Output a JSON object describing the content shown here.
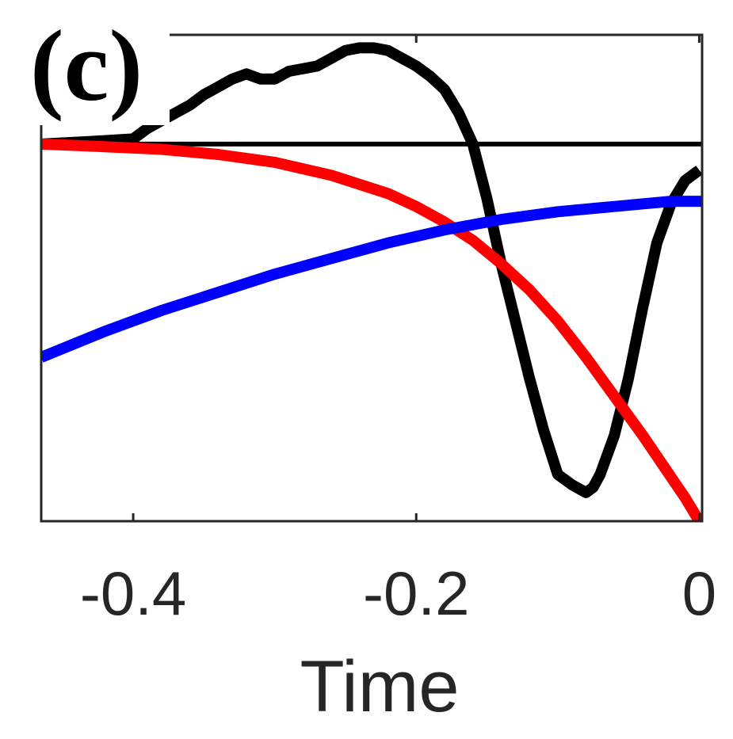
{
  "chart_data": {
    "type": "line",
    "panel_label": "(c)",
    "title": "",
    "xlabel": "Time",
    "ylabel": "",
    "xlim": [
      -0.465,
      0.002
    ],
    "ylim": [
      -1.45,
      0.42
    ],
    "xticks": [
      -0.4,
      -0.2,
      0
    ],
    "xtick_labels": [
      "-0.4",
      "-0.2",
      "0"
    ],
    "yticks": [],
    "grid": false,
    "reference_line": {
      "y": 0,
      "color": "#000000"
    },
    "series": [
      {
        "color": "#000000",
        "x": [
          -0.465,
          -0.43,
          -0.4,
          -0.39,
          -0.38,
          -0.37,
          -0.36,
          -0.35,
          -0.34,
          -0.33,
          -0.32,
          -0.31,
          -0.3,
          -0.29,
          -0.28,
          -0.27,
          -0.26,
          -0.25,
          -0.24,
          -0.23,
          -0.22,
          -0.21,
          -0.2,
          -0.19,
          -0.18,
          -0.17,
          -0.16,
          -0.15,
          -0.14,
          -0.13,
          -0.12,
          -0.11,
          -0.1,
          -0.09,
          -0.08,
          -0.075,
          -0.07,
          -0.06,
          -0.05,
          -0.04,
          -0.03,
          -0.02,
          -0.01,
          0.0
        ],
        "y": [
          0.0,
          0.01,
          0.02,
          0.06,
          0.09,
          0.12,
          0.15,
          0.19,
          0.22,
          0.25,
          0.27,
          0.25,
          0.25,
          0.28,
          0.29,
          0.3,
          0.33,
          0.36,
          0.37,
          0.37,
          0.36,
          0.33,
          0.3,
          0.26,
          0.21,
          0.12,
          0.0,
          -0.21,
          -0.46,
          -0.68,
          -0.9,
          -1.1,
          -1.27,
          -1.31,
          -1.34,
          -1.32,
          -1.27,
          -1.12,
          -0.9,
          -0.63,
          -0.38,
          -0.23,
          -0.14,
          -0.1
        ]
      },
      {
        "color": "#ff0000",
        "x": [
          -0.465,
          -0.42,
          -0.38,
          -0.34,
          -0.3,
          -0.26,
          -0.22,
          -0.2,
          -0.18,
          -0.16,
          -0.14,
          -0.12,
          -0.1,
          -0.08,
          -0.06,
          -0.04,
          -0.02,
          -0.01,
          0.0
        ],
        "y": [
          0.0,
          -0.01,
          -0.02,
          -0.04,
          -0.07,
          -0.12,
          -0.19,
          -0.24,
          -0.3,
          -0.37,
          -0.46,
          -0.56,
          -0.68,
          -0.82,
          -0.97,
          -1.12,
          -1.28,
          -1.36,
          -1.45
        ]
      },
      {
        "color": "#0000ff",
        "x": [
          -0.465,
          -0.42,
          -0.38,
          -0.34,
          -0.3,
          -0.26,
          -0.22,
          -0.18,
          -0.14,
          -0.1,
          -0.06,
          -0.02,
          0.002
        ],
        "y": [
          -0.82,
          -0.72,
          -0.64,
          -0.57,
          -0.5,
          -0.44,
          -0.38,
          -0.33,
          -0.29,
          -0.26,
          -0.24,
          -0.22,
          -0.22
        ]
      }
    ]
  }
}
